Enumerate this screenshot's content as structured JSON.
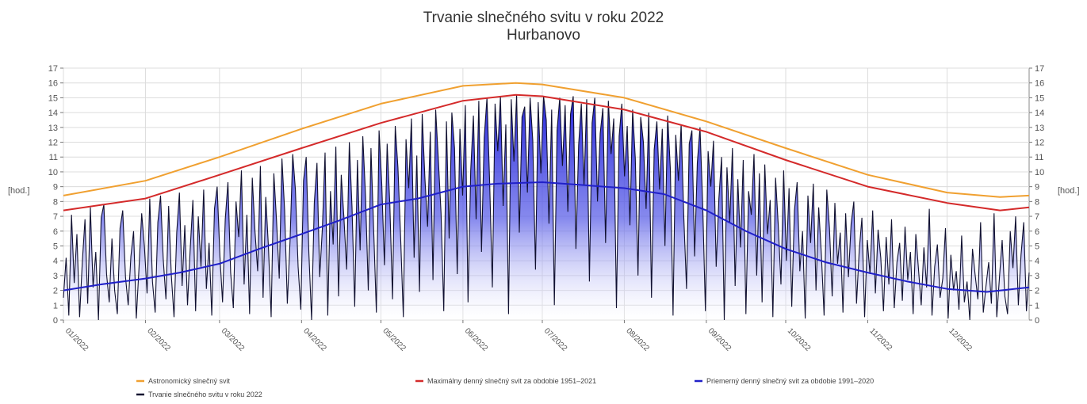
{
  "chart_data": {
    "type": "area",
    "title": "Trvanie slnečného svitu v roku 2022",
    "subtitle": "Hurbanovo",
    "ylabel_left": "[hod.]",
    "ylabel_right": "[hod.]",
    "ylim": [
      0,
      17
    ],
    "yticks": [
      0,
      1,
      2,
      3,
      4,
      5,
      6,
      7,
      8,
      9,
      10,
      11,
      12,
      13,
      14,
      15,
      16,
      17
    ],
    "xlim": [
      1,
      366
    ],
    "xticks": [
      {
        "label": "01/2022",
        "day": 1
      },
      {
        "label": "02/2022",
        "day": 32
      },
      {
        "label": "03/2022",
        "day": 60
      },
      {
        "label": "04/2022",
        "day": 91
      },
      {
        "label": "05/2022",
        "day": 121
      },
      {
        "label": "06/2022",
        "day": 152
      },
      {
        "label": "07/2022",
        "day": 182
      },
      {
        "label": "08/2022",
        "day": 213
      },
      {
        "label": "09/2022",
        "day": 244
      },
      {
        "label": "10/2022",
        "day": 274
      },
      {
        "label": "11/2022",
        "day": 305
      },
      {
        "label": "12/2022",
        "day": 335
      }
    ],
    "grid": true,
    "legend_position": "bottom",
    "series": [
      {
        "key": "astro",
        "name": "Astronomický slnečný svit",
        "color": "#f0a030",
        "style": "line",
        "points": [
          [
            1,
            8.4
          ],
          [
            32,
            9.4
          ],
          [
            60,
            11.0
          ],
          [
            91,
            12.9
          ],
          [
            121,
            14.6
          ],
          [
            152,
            15.8
          ],
          [
            172,
            16.0
          ],
          [
            182,
            15.9
          ],
          [
            213,
            15.0
          ],
          [
            244,
            13.4
          ],
          [
            274,
            11.6
          ],
          [
            305,
            9.8
          ],
          [
            335,
            8.6
          ],
          [
            355,
            8.3
          ],
          [
            366,
            8.4
          ]
        ]
      },
      {
        "key": "max",
        "name": "Maximálny denný slnečný svit za obdobie 1951–2021",
        "color": "#d42a2a",
        "style": "line",
        "points": [
          [
            1,
            7.4
          ],
          [
            32,
            8.2
          ],
          [
            60,
            9.8
          ],
          [
            91,
            11.6
          ],
          [
            121,
            13.3
          ],
          [
            152,
            14.8
          ],
          [
            172,
            15.2
          ],
          [
            182,
            15.1
          ],
          [
            213,
            14.2
          ],
          [
            244,
            12.7
          ],
          [
            274,
            10.8
          ],
          [
            305,
            9.0
          ],
          [
            335,
            7.9
          ],
          [
            355,
            7.4
          ],
          [
            366,
            7.6
          ]
        ]
      },
      {
        "key": "avg",
        "name": "Priemerný denný slnečný svit za obdobie 1991–2020",
        "color": "#2020c8",
        "style": "line",
        "points": [
          [
            1,
            2.0
          ],
          [
            15,
            2.4
          ],
          [
            32,
            2.8
          ],
          [
            45,
            3.2
          ],
          [
            60,
            3.8
          ],
          [
            75,
            4.8
          ],
          [
            91,
            5.8
          ],
          [
            105,
            6.7
          ],
          [
            121,
            7.8
          ],
          [
            135,
            8.2
          ],
          [
            152,
            9.0
          ],
          [
            165,
            9.2
          ],
          [
            182,
            9.3
          ],
          [
            198,
            9.1
          ],
          [
            213,
            8.9
          ],
          [
            228,
            8.5
          ],
          [
            244,
            7.4
          ],
          [
            259,
            6.0
          ],
          [
            274,
            4.8
          ],
          [
            289,
            3.9
          ],
          [
            305,
            3.2
          ],
          [
            320,
            2.6
          ],
          [
            335,
            2.1
          ],
          [
            350,
            1.9
          ],
          [
            366,
            2.2
          ]
        ]
      },
      {
        "key": "actual",
        "name": "Trvanie slnečného svitu v roku 2022",
        "color": "#101030",
        "style": "area",
        "values": [
          1.5,
          4.2,
          0.3,
          7.1,
          2.5,
          5.8,
          0.2,
          3.9,
          6.8,
          1.1,
          7.6,
          2.2,
          4.6,
          0.0,
          6.9,
          7.8,
          3.1,
          1.2,
          5.5,
          2.0,
          0.4,
          6.2,
          7.4,
          2.9,
          1.0,
          4.3,
          6.0,
          0.1,
          3.5,
          7.2,
          5.0,
          1.8,
          8.2,
          2.6,
          0.5,
          6.6,
          8.4,
          4.1,
          1.4,
          7.7,
          3.0,
          0.2,
          5.9,
          8.6,
          2.3,
          6.4,
          1.0,
          4.8,
          8.1,
          0.6,
          7.0,
          3.6,
          8.8,
          2.1,
          5.2,
          0.3,
          7.5,
          9.0,
          4.4,
          1.2,
          6.8,
          9.3,
          3.2,
          0.8,
          8.0,
          5.6,
          10.1,
          2.4,
          7.1,
          0.4,
          9.6,
          6.0,
          3.3,
          10.4,
          1.5,
          8.3,
          4.9,
          0.2,
          9.9,
          6.7,
          2.8,
          10.9,
          7.4,
          1.1,
          5.3,
          11.2,
          8.8,
          3.6,
          0.7,
          9.4,
          11.0,
          4.5,
          0.0,
          7.9,
          10.6,
          2.9,
          6.2,
          11.3,
          0.3,
          8.7,
          5.1,
          11.7,
          1.6,
          9.8,
          6.9,
          3.4,
          12.0,
          7.6,
          0.9,
          10.8,
          4.7,
          12.4,
          8.3,
          2.0,
          11.6,
          6.1,
          0.5,
          12.8,
          9.2,
          3.7,
          11.9,
          7.8,
          1.4,
          13.1,
          10.3,
          5.6,
          0.2,
          12.2,
          8.9,
          13.6,
          4.2,
          11.1,
          1.9,
          13.9,
          9.6,
          6.3,
          12.7,
          2.7,
          14.2,
          10.8,
          7.2,
          0.6,
          13.4,
          5.5,
          14.0,
          11.6,
          3.1,
          12.9,
          8.4,
          14.5,
          1.2,
          10.1,
          13.8,
          6.8,
          14.8,
          4.6,
          12.3,
          15.0,
          9.3,
          2.2,
          14.6,
          11.4,
          15.1,
          7.7,
          13.2,
          0.4,
          14.9,
          10.7,
          15.2,
          5.9,
          13.7,
          14.4,
          8.6,
          15.0,
          12.1,
          3.4,
          14.7,
          9.9,
          15.1,
          13.5,
          6.5,
          14.2,
          1.0,
          12.8,
          15.0,
          10.4,
          14.5,
          7.3,
          13.9,
          15.1,
          4.8,
          11.8,
          14.6,
          9.1,
          14.9,
          2.6,
          13.3,
          15.0,
          8.0,
          12.6,
          14.3,
          5.2,
          14.8,
          11.2,
          13.6,
          0.8,
          12.4,
          14.6,
          9.7,
          13.1,
          6.4,
          14.2,
          10.9,
          3.0,
          13.7,
          12.0,
          7.5,
          14.0,
          1.5,
          11.5,
          13.4,
          8.8,
          12.9,
          5.0,
          13.8,
          10.2,
          0.3,
          12.5,
          9.4,
          13.2,
          6.9,
          2.1,
          11.9,
          12.8,
          4.3,
          10.6,
          13.0,
          7.8,
          0.6,
          11.4,
          9.0,
          12.1,
          3.6,
          8.2,
          11.0,
          0.0,
          10.3,
          6.6,
          11.6,
          2.3,
          9.5,
          4.9,
          10.8,
          0.4,
          8.7,
          7.1,
          11.2,
          3.0,
          9.9,
          1.2,
          10.5,
          5.8,
          8.1,
          0.2,
          9.6,
          6.4,
          2.4,
          10.1,
          4.0,
          8.9,
          0.9,
          7.4,
          9.3,
          3.3,
          6.0,
          0.1,
          8.4,
          5.2,
          9.2,
          2.0,
          7.6,
          4.4,
          0.3,
          8.8,
          6.2,
          1.6,
          7.9,
          3.8,
          5.9,
          0.5,
          7.2,
          2.9,
          6.5,
          8.0,
          1.1,
          4.7,
          6.9,
          0.2,
          5.4,
          3.1,
          7.4,
          1.8,
          6.1,
          4.2,
          0.6,
          5.6,
          2.4,
          6.8,
          0.8,
          3.9,
          5.2,
          1.3,
          6.3,
          2.7,
          4.6,
          0.4,
          5.8,
          3.4,
          1.0,
          4.9,
          2.2,
          7.5,
          0.3,
          3.6,
          5.1,
          1.5,
          2.8,
          6.2,
          0.1,
          4.4,
          2.0,
          3.3,
          0.7,
          5.7,
          1.2,
          2.6,
          0.0,
          4.8,
          3.0,
          1.4,
          6.6,
          0.5,
          2.3,
          3.9,
          1.1,
          7.2,
          0.2,
          2.9,
          5.4,
          1.6,
          0.4,
          6.0,
          3.5,
          7.0,
          1.0,
          4.4,
          6.6,
          0.6,
          3.2
        ]
      }
    ]
  }
}
